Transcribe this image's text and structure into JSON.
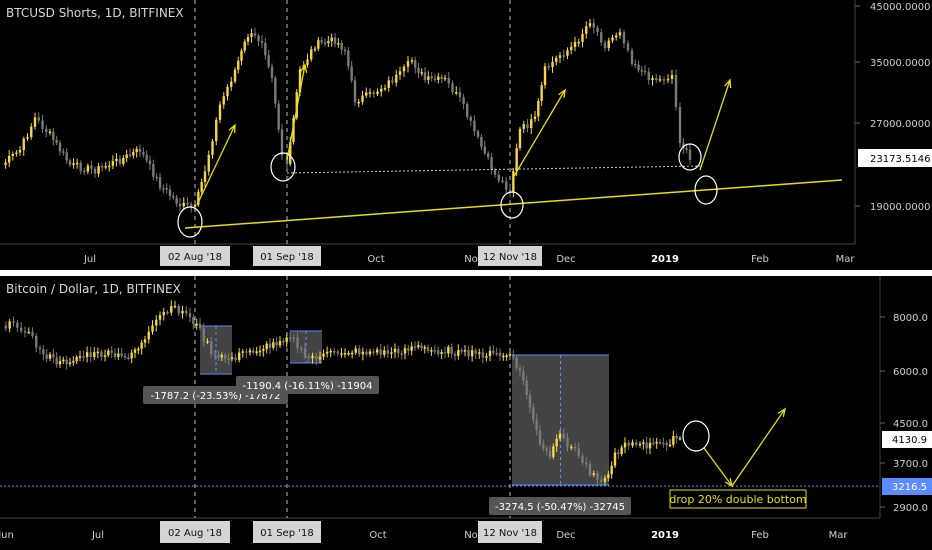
{
  "chart_data": [
    {
      "type": "candlestick",
      "title": "BTCUSD Shorts, 1D, BITFINEX",
      "y_ticks": [
        "45000.0000",
        "35000.0000",
        "27000.0000",
        "19000.0000"
      ],
      "y_tick_values": [
        45000,
        35000,
        27000,
        19000
      ],
      "last_price_label": "23173.5146",
      "last_price": 23173.5146,
      "x_labels": [
        "Jul",
        "Oct",
        "No",
        "Dec",
        "2019",
        "Feb",
        "Mar"
      ],
      "date_markers": [
        "02 Aug '18",
        "01 Sep '18",
        "12 Nov '18"
      ],
      "colors": {
        "up": "#f5d742",
        "down": "#7a7a7a",
        "trendline": "#e8e000",
        "marker": "#ffffff"
      }
    },
    {
      "type": "candlestick",
      "title": "Bitcoin / Dollar, 1D, BITFINEX",
      "y_ticks": [
        "8000.0",
        "6000.0",
        "4500.0",
        "3700.0",
        "2900.0"
      ],
      "y_tick_values": [
        8000,
        6000,
        4500,
        3700,
        2900
      ],
      "last_price_label": "4130.9",
      "last_price": 4130.9,
      "support_label": "3216.5",
      "support_price": 3216.5,
      "x_labels": [
        "Jun",
        "Jul",
        "Oct",
        "No",
        "Dec",
        "2019",
        "Feb",
        "Mar"
      ],
      "date_markers": [
        "02 Aug '18",
        "01 Sep '18",
        "12 Nov '18"
      ],
      "annotations": [
        "-1787.2 (-23.53%) -17872",
        "-1190.4 (-16.11%) -11904",
        "-3274.5 (-50.47%) -32745",
        "drop 20% double bottom"
      ],
      "colors": {
        "up": "#f5d742",
        "down": "#7a7a7a",
        "box": "#4a4a4a",
        "box_edge": "#5b8cff",
        "arrow": "#e8e000"
      }
    }
  ]
}
